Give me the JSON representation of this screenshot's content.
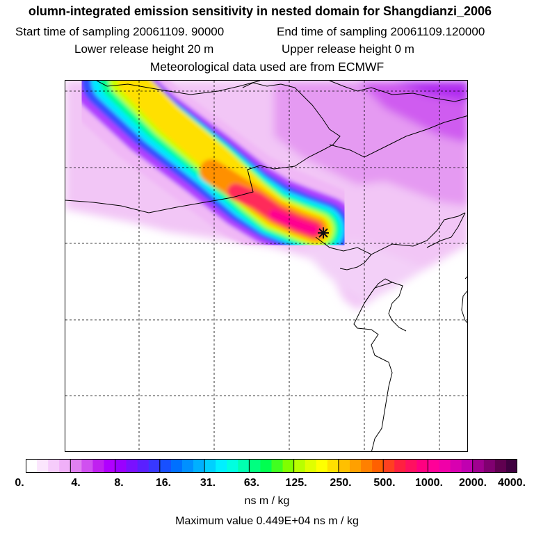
{
  "title": {
    "line1": "olumn-integrated emission sensitivity in nested domain for Shangdianzi_2006",
    "line2a": "Start time of sampling 20061109. 90000",
    "line2b": "End time of sampling 20061109.120000",
    "line3a": "Lower release height   20 m",
    "line3b": "Upper release height    0 m",
    "line4": "Meteorological data used are from ECMWF"
  },
  "map": {
    "grid": "dashed",
    "station_marker": "star-icon",
    "plume_colors": [
      "#f0c8f5",
      "#c060ff",
      "#4040ff",
      "#00e0ff",
      "#00ff80",
      "#c8ff00",
      "#ffe000",
      "#ff9000",
      "#ff2a5a",
      "#ff0088"
    ]
  },
  "colorbar": {
    "ticks": [
      "0.",
      "4.",
      "8.",
      "16.",
      "31.",
      "63.",
      "125.",
      "250.",
      "500.",
      "1000.",
      "2000.",
      "4000."
    ],
    "colors": [
      "#ffffff",
      "#fbe6fd",
      "#f6ccfb",
      "#f0b0f8",
      "#e080f0",
      "#d050f0",
      "#c020f0",
      "#b000ff",
      "#9a00ff",
      "#7a10ff",
      "#5a20ff",
      "#3838ff",
      "#1850ff",
      "#0070ff",
      "#0090ff",
      "#00b0ff",
      "#00d0ff",
      "#00f0ff",
      "#00ffe0",
      "#00ffb0",
      "#00ff80",
      "#00ff50",
      "#40ff20",
      "#80ff00",
      "#b8ff00",
      "#e0ff00",
      "#ffff00",
      "#ffe000",
      "#ffc000",
      "#ffa000",
      "#ff8000",
      "#ff6000",
      "#ff4020",
      "#ff2040",
      "#ff1060",
      "#ff0080",
      "#ff0098",
      "#f000a8",
      "#d800b0",
      "#c000b0",
      "#a00090",
      "#800070",
      "#600050",
      "#400040"
    ],
    "units": "ns m / kg",
    "max_value": "Maximum value  0.449E+04 ns m / kg"
  }
}
